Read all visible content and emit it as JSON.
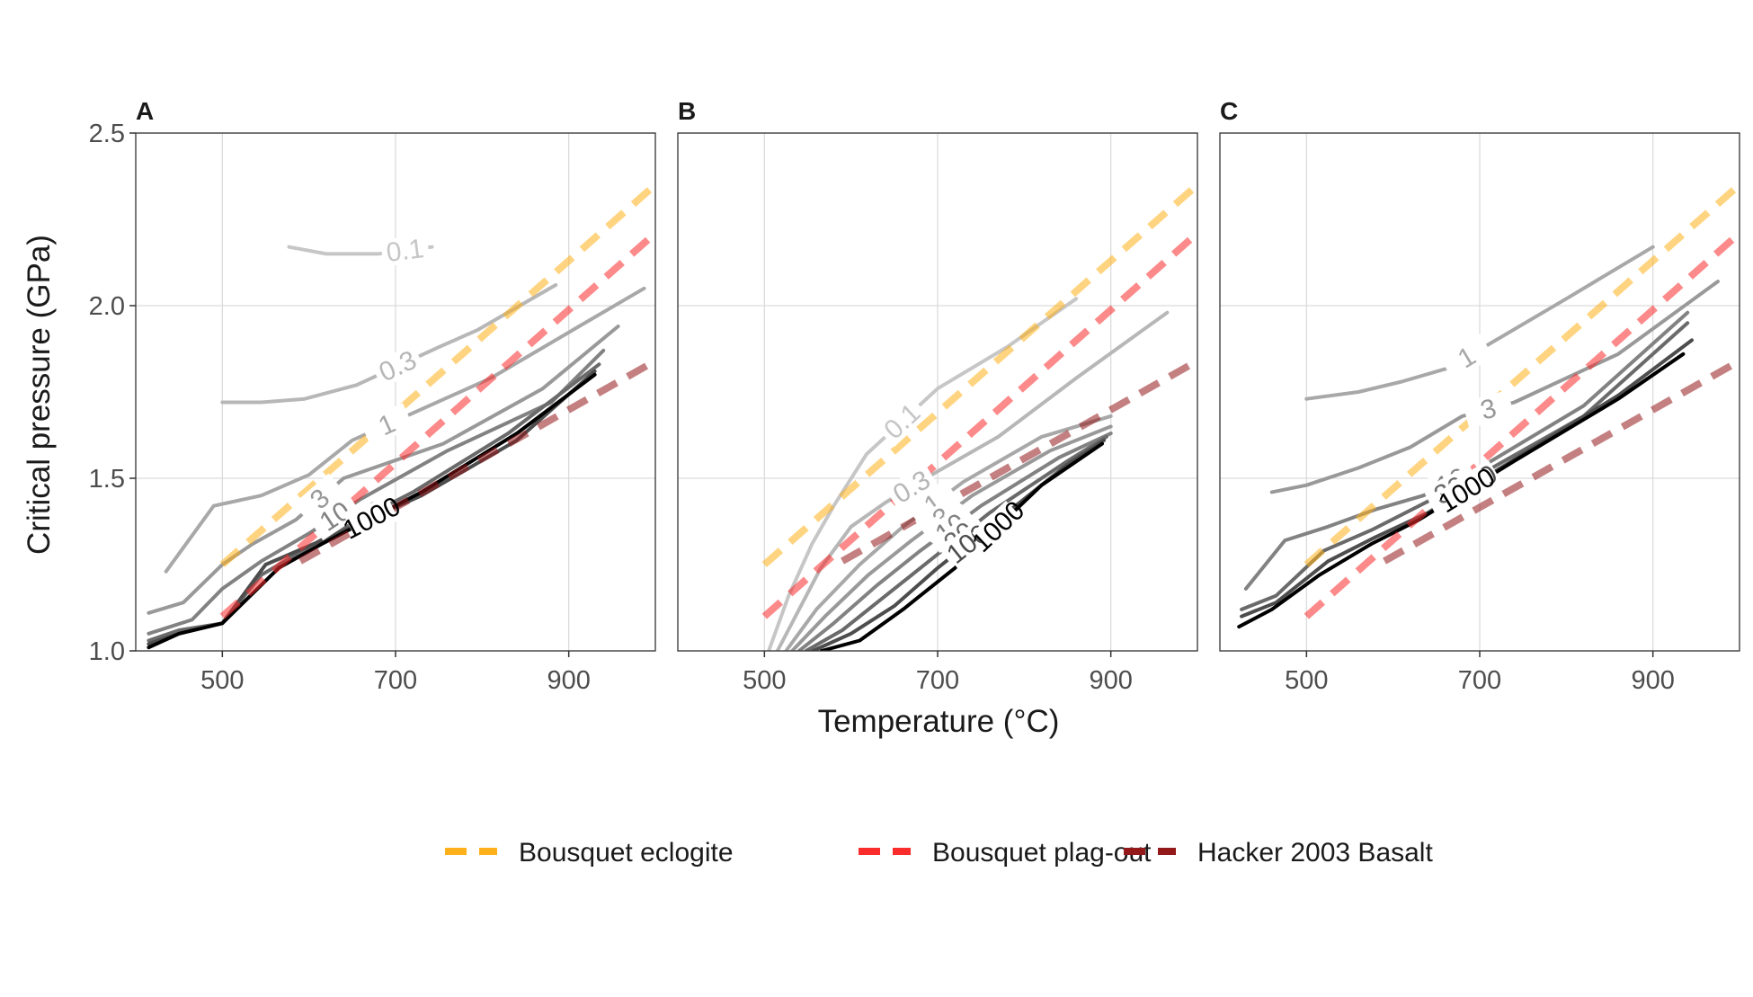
{
  "chart_data": {
    "type": "line",
    "xlabel": "Temperature (°C)",
    "ylabel": "Critical pressure (GPa)",
    "xlim": [
      400,
      1000
    ],
    "ylim": [
      1.0,
      2.5
    ],
    "x_ticks": [
      "500",
      "700",
      "900"
    ],
    "y_ticks": [
      "1.0",
      "1.5",
      "2.0",
      "2.5"
    ],
    "grid": true,
    "legend_position": "bottom",
    "reference_lines": [
      {
        "name": "Bousquet eclogite",
        "color": "#ffb11b",
        "x": [
          500,
          1000
        ],
        "y": [
          1.25,
          2.35
        ]
      },
      {
        "name": "Bousquet plag-out",
        "color": "#fb2c2c",
        "x": [
          500,
          1000
        ],
        "y": [
          1.1,
          2.21
        ]
      },
      {
        "name": "Hacker 2003 Basalt",
        "color": "#94191b",
        "x": [
          590,
          1000
        ],
        "y": [
          1.26,
          1.84
        ]
      }
    ],
    "panels": [
      {
        "tag": "A",
        "contours": [
          {
            "label": "0.1",
            "color": "#c6c6c6",
            "x": [
              577,
              620,
              680,
              742
            ],
            "y": [
              2.17,
              2.15,
              2.15,
              2.17
            ]
          },
          {
            "label": "0.3",
            "color": "#b7b7b7",
            "x": [
              500,
              545,
              595,
              655,
              750,
              795,
              885
            ],
            "y": [
              1.72,
              1.72,
              1.73,
              1.77,
              1.88,
              1.93,
              2.06
            ]
          },
          {
            "label": "1",
            "color": "#a8a8a8",
            "x": [
              435,
              490,
              545,
              600,
              650,
              730,
              810,
              905,
              987
            ],
            "y": [
              1.23,
              1.42,
              1.45,
              1.51,
              1.61,
              1.7,
              1.79,
              1.93,
              2.05
            ]
          },
          {
            "label": "3",
            "color": "#999999",
            "x": [
              415,
              455,
              500,
              535,
              585,
              640,
              755,
              870,
              957
            ],
            "y": [
              1.11,
              1.14,
              1.25,
              1.31,
              1.38,
              1.5,
              1.6,
              1.76,
              1.94
            ]
          },
          {
            "label": "10",
            "color": "#828282",
            "x": [
              415,
              465,
              500,
              545,
              600,
              660,
              760,
              880,
              940
            ],
            "y": [
              1.05,
              1.09,
              1.18,
              1.26,
              1.34,
              1.44,
              1.58,
              1.72,
              1.87
            ]
          },
          {
            "label": "30",
            "color": "#6a6a6a",
            "x": [
              415,
              450,
              500,
              545,
              620,
              720,
              830,
              935
            ],
            "y": [
              1.03,
              1.06,
              1.08,
              1.22,
              1.33,
              1.46,
              1.63,
              1.83
            ]
          },
          {
            "label": "100",
            "color": "#4d4d4d",
            "x": [
              415,
              450,
              500,
              550,
              615,
              730,
              840,
              930
            ],
            "y": [
              1.02,
              1.05,
              1.08,
              1.25,
              1.32,
              1.45,
              1.61,
              1.81
            ]
          },
          {
            "label": "1000",
            "color": "#000000",
            "x": [
              415,
              450,
              500,
              565,
              615,
              730,
              840,
              930
            ],
            "y": [
              1.01,
              1.05,
              1.08,
              1.24,
              1.31,
              1.46,
              1.63,
              1.8
            ]
          }
        ]
      },
      {
        "tag": "B",
        "contours": [
          {
            "label": "0.1",
            "color": "#c6c6c6",
            "x": [
              505,
              528,
              555,
              580,
              618,
              700,
              780,
              860
            ],
            "y": [
              1.0,
              1.16,
              1.31,
              1.42,
              1.57,
              1.76,
              1.88,
              2.02
            ]
          },
          {
            "label": "0.3",
            "color": "#b7b7b7",
            "x": [
              515,
              540,
              565,
              600,
              640,
              700,
              770,
              860,
              965
            ],
            "y": [
              1.0,
              1.12,
              1.24,
              1.36,
              1.43,
              1.52,
              1.62,
              1.79,
              1.98
            ]
          },
          {
            "label": "1",
            "color": "#a8a8a8",
            "x": [
              525,
              560,
              610,
              660,
              730,
              820,
              900
            ],
            "y": [
              1.0,
              1.12,
              1.25,
              1.36,
              1.49,
              1.62,
              1.68
            ]
          },
          {
            "label": "3",
            "color": "#999999",
            "x": [
              532,
              570,
              620,
              670,
              740,
              830,
              900
            ],
            "y": [
              1.0,
              1.1,
              1.22,
              1.32,
              1.45,
              1.58,
              1.65
            ]
          },
          {
            "label": "10",
            "color": "#828282",
            "x": [
              540,
              580,
              630,
              680,
              750,
              840,
              900
            ],
            "y": [
              1.0,
              1.08,
              1.19,
              1.29,
              1.42,
              1.56,
              1.63
            ]
          },
          {
            "label": "30",
            "color": "#6a6a6a",
            "x": [
              548,
              590,
              640,
              690,
              760,
              850,
              895
            ],
            "y": [
              1.0,
              1.06,
              1.16,
              1.26,
              1.4,
              1.55,
              1.62
            ]
          },
          {
            "label": "100",
            "color": "#4d4d4d",
            "x": [
              556,
              600,
              650,
              700,
              770,
              850,
              892
            ],
            "y": [
              1.0,
              1.05,
              1.13,
              1.24,
              1.38,
              1.54,
              1.61
            ]
          },
          {
            "label": "1000",
            "color": "#000000",
            "x": [
              566,
              610,
              660,
              720,
              820,
              890
            ],
            "y": [
              1.0,
              1.03,
              1.12,
              1.24,
              1.48,
              1.6
            ]
          }
        ]
      },
      {
        "tag": "C",
        "contours": [
          {
            "label": "1",
            "color": "#a8a8a8",
            "x": [
              500,
              560,
              610,
              665,
              705,
              800,
              900
            ],
            "y": [
              1.73,
              1.75,
              1.78,
              1.82,
              1.88,
              2.02,
              2.17
            ]
          },
          {
            "label": "3",
            "color": "#999999",
            "x": [
              460,
              500,
              560,
              620,
              680,
              740,
              860,
              975
            ],
            "y": [
              1.46,
              1.48,
              1.53,
              1.59,
              1.68,
              1.72,
              1.86,
              2.07
            ]
          },
          {
            "label": "10",
            "color": "#828282",
            "x": [
              430,
              475,
              525,
              580,
              635,
              700,
              820,
              940
            ],
            "y": [
              1.18,
              1.32,
              1.36,
              1.41,
              1.45,
              1.53,
              1.71,
              1.98
            ]
          },
          {
            "label": "30",
            "color": "#6a6a6a",
            "x": [
              425,
              465,
              520,
              575,
              630,
              700,
              820,
              940
            ],
            "y": [
              1.12,
              1.16,
              1.29,
              1.35,
              1.42,
              1.51,
              1.68,
              1.95
            ]
          },
          {
            "label": "100",
            "color": "#4d4d4d",
            "x": [
              425,
              465,
              525,
              580,
              640,
              750,
              860,
              945
            ],
            "y": [
              1.1,
              1.14,
              1.26,
              1.33,
              1.4,
              1.57,
              1.74,
              1.9
            ]
          },
          {
            "label": "1000",
            "color": "#000000",
            "x": [
              422,
              460,
              515,
              575,
              630,
              740,
              860,
              935
            ],
            "y": [
              1.07,
              1.12,
              1.22,
              1.31,
              1.38,
              1.55,
              1.73,
              1.86
            ]
          }
        ]
      }
    ]
  }
}
